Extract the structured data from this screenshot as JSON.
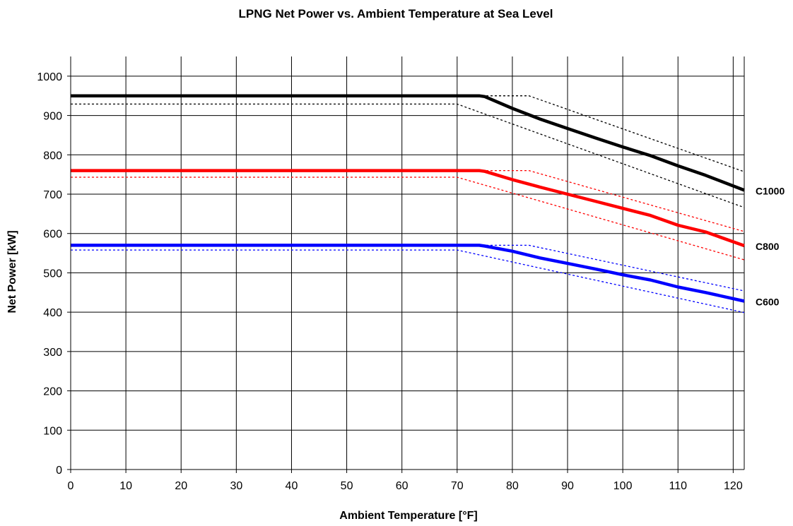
{
  "chart_data": {
    "type": "line",
    "title": "LPNG Net Power vs. Ambient Temperature at Sea Level",
    "xlabel": "Ambient Temperature [°F]",
    "ylabel": "Net Power [kW]",
    "xlim": [
      0,
      122
    ],
    "ylim": [
      0,
      1050
    ],
    "xticks": [
      0,
      10,
      20,
      30,
      40,
      50,
      60,
      70,
      80,
      90,
      100,
      110,
      120
    ],
    "yticks": [
      0,
      100,
      200,
      300,
      400,
      500,
      600,
      700,
      800,
      900,
      1000
    ],
    "grid": true,
    "legend": "none",
    "series": [
      {
        "name": "C1000",
        "color": "#000000",
        "points": [
          [
            0,
            950
          ],
          [
            74,
            950
          ],
          [
            75,
            948
          ],
          [
            80,
            918
          ],
          [
            85,
            891
          ],
          [
            90,
            867
          ],
          [
            95,
            843
          ],
          [
            100,
            820
          ],
          [
            105,
            798
          ],
          [
            110,
            772
          ],
          [
            115,
            748
          ],
          [
            122,
            710
          ]
        ],
        "upper": [
          [
            0,
            950
          ],
          [
            83,
            950
          ],
          [
            122,
            757
          ]
        ],
        "lower": [
          [
            0,
            929
          ],
          [
            70,
            929
          ],
          [
            122,
            666
          ]
        ]
      },
      {
        "name": "C800",
        "color": "#ff0000",
        "points": [
          [
            0,
            760
          ],
          [
            74,
            760
          ],
          [
            75,
            758
          ],
          [
            80,
            737
          ],
          [
            85,
            718
          ],
          [
            90,
            700
          ],
          [
            95,
            682
          ],
          [
            100,
            664
          ],
          [
            105,
            646
          ],
          [
            110,
            621
          ],
          [
            115,
            604
          ],
          [
            122,
            569
          ]
        ],
        "upper": [
          [
            0,
            760
          ],
          [
            83,
            760
          ],
          [
            122,
            605
          ]
        ],
        "lower": [
          [
            0,
            743
          ],
          [
            70,
            743
          ],
          [
            122,
            533
          ]
        ]
      },
      {
        "name": "C600",
        "color": "#0000ff",
        "points": [
          [
            0,
            570
          ],
          [
            74,
            570
          ],
          [
            75,
            568
          ],
          [
            80,
            555
          ],
          [
            85,
            538
          ],
          [
            90,
            524
          ],
          [
            95,
            510
          ],
          [
            100,
            495
          ],
          [
            105,
            482
          ],
          [
            110,
            464
          ],
          [
            115,
            450
          ],
          [
            122,
            428
          ]
        ],
        "upper": [
          [
            0,
            570
          ],
          [
            83,
            570
          ],
          [
            122,
            454
          ]
        ],
        "lower": [
          [
            0,
            558
          ],
          [
            70,
            558
          ],
          [
            122,
            399
          ]
        ]
      }
    ]
  }
}
